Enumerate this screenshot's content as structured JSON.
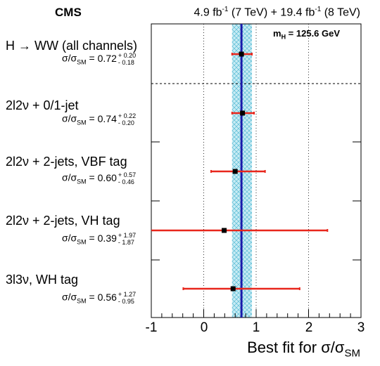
{
  "header": {
    "experiment": "CMS",
    "lumi_7": "4.9 fb",
    "lumi_7_exp": "-1",
    "lumi_7_energy": " (7 TeV) + ",
    "lumi_8": "19.4 fb",
    "lumi_8_exp": "-1",
    "lumi_8_energy": " (8 TeV)",
    "mass_label_main": "m",
    "mass_label_sub": "H",
    "mass_label_value": " = 125.6 GeV"
  },
  "ratio_symbol": {
    "main": "σ/σ",
    "sub": "SM",
    "eq": " = "
  },
  "colors": {
    "combined_line": "#1a1aaa",
    "band_fill": "#c8ecf4",
    "band_hatch": "#5bbcd6",
    "error_bar": "#e8261c",
    "marker": "#000000"
  },
  "chart_data": {
    "type": "scatter",
    "xlabel": "Best fit for σ/σ",
    "xlabel_sub": "SM",
    "xlim": [
      -1,
      3
    ],
    "xticks": [
      "-1",
      "0",
      "1",
      "2",
      "3"
    ],
    "grid": "vertical dotted at 0, 1, 2",
    "combined": {
      "value": 0.72,
      "band": [
        0.54,
        0.92
      ]
    },
    "categories": [
      {
        "label": "H → WW (all channels)",
        "value": 0.72,
        "value_text": "0.72",
        "up": 0.2,
        "down": 0.18,
        "up_text": "+ 0.20",
        "down_text": "- 0.18"
      },
      {
        "label": "2l2ν + 0/1-jet",
        "value": 0.74,
        "value_text": "0.74",
        "up": 0.22,
        "down": 0.2,
        "up_text": "+ 0.22",
        "down_text": "- 0.20"
      },
      {
        "label": "2l2ν + 2-jets, VBF tag",
        "value": 0.6,
        "value_text": "0.60",
        "up": 0.57,
        "down": 0.46,
        "up_text": "+ 0.57",
        "down_text": "- 0.46"
      },
      {
        "label": "2l2ν + 2-jets, VH tag",
        "value": 0.39,
        "value_text": "0.39",
        "up": 1.97,
        "down": 1.87,
        "up_text": "+ 1.97",
        "down_text": "- 1.87"
      },
      {
        "label": "3l3ν, WH tag",
        "value": 0.56,
        "value_text": "0.56",
        "up": 1.27,
        "down": 0.95,
        "up_text": "+ 1.27",
        "down_text": "- 0.95"
      }
    ]
  }
}
